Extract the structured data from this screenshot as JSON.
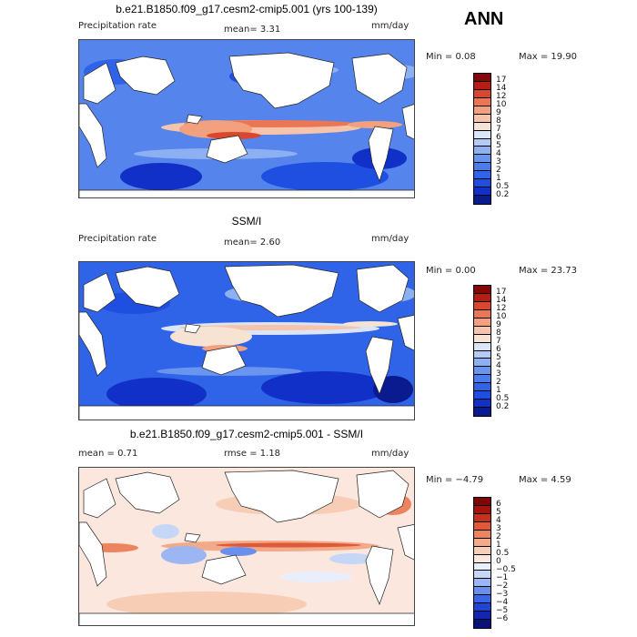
{
  "season": "ANN",
  "units": "mm/day",
  "panels": [
    {
      "title": "b.e21.B1850.f09_g17.cesm2-cmip5.001 (yrs 100-139)",
      "left_label": "Precipitation rate",
      "mid_label": "mean=   3.31",
      "units": "mm/day",
      "min_label": "Min =   0.08",
      "max_label": "Max =  19.90",
      "colorbar_ticks": [
        "17",
        "14",
        "12",
        "10",
        "9",
        "8",
        "7",
        "6",
        "5",
        "4",
        "3",
        "2",
        "1",
        "0.5",
        "0.2"
      ]
    },
    {
      "title": "SSM/I",
      "left_label": "Precipitation rate",
      "mid_label": "mean=   2.60",
      "units": "mm/day",
      "min_label": "Min =   0.00",
      "max_label": "Max =  23.73",
      "colorbar_ticks": [
        "17",
        "14",
        "12",
        "10",
        "9",
        "8",
        "7",
        "6",
        "5",
        "4",
        "3",
        "2",
        "1",
        "0.5",
        "0.2"
      ]
    },
    {
      "title": "b.e21.B1850.f09_g17.cesm2-cmip5.001 - SSM/I",
      "left_label": "mean =   0.71",
      "mid_label": "rmse =   1.18",
      "units": "mm/day",
      "min_label": "Min = −4.79",
      "max_label": "Max =   4.59",
      "colorbar_ticks": [
        "6",
        "5",
        "4",
        "3",
        "2",
        "1",
        "0.5",
        "0",
        "−0.5",
        "−1",
        "−2",
        "−3",
        "−4",
        "−5",
        "−6"
      ]
    }
  ],
  "chart_data": [
    {
      "type": "heatmap",
      "title": "b.e21.B1850.f09_g17.cesm2-cmip5.001 (yrs 100-139)",
      "variable": "Precipitation rate",
      "units": "mm/day",
      "mean": 3.31,
      "min": 0.08,
      "max": 19.9,
      "color_levels": [
        0.2,
        0.5,
        1,
        2,
        3,
        4,
        5,
        6,
        7,
        8,
        9,
        10,
        12,
        14,
        17
      ],
      "colors": [
        "#0a1a8f",
        "#1030c8",
        "#1f4fe0",
        "#2f64e8",
        "#4a7cec",
        "#6a95ef",
        "#8cb0f2",
        "#b4cbf5",
        "#dbe5f8",
        "#f6e3d4",
        "#f6c4ab",
        "#f2a07e",
        "#ea7653",
        "#d9482e",
        "#b51e13",
        "#850808"
      ]
    },
    {
      "type": "heatmap",
      "title": "SSM/I",
      "variable": "Precipitation rate",
      "units": "mm/day",
      "mean": 2.6,
      "min": 0.0,
      "max": 23.73,
      "color_levels": [
        0.2,
        0.5,
        1,
        2,
        3,
        4,
        5,
        6,
        7,
        8,
        9,
        10,
        12,
        14,
        17
      ],
      "colors": [
        "#0a1a8f",
        "#1030c8",
        "#1f4fe0",
        "#2f64e8",
        "#4a7cec",
        "#6a95ef",
        "#8cb0f2",
        "#b4cbf5",
        "#dbe5f8",
        "#f6e3d4",
        "#f6c4ab",
        "#f2a07e",
        "#ea7653",
        "#d9482e",
        "#b51e13",
        "#850808"
      ]
    },
    {
      "type": "heatmap",
      "title": "b.e21.B1850.f09_g17.cesm2-cmip5.001 - SSM/I",
      "units": "mm/day",
      "mean": 0.71,
      "rmse": 1.18,
      "min": -4.79,
      "max": 4.59,
      "color_levels": [
        -6,
        -5,
        -4,
        -3,
        -2,
        -1,
        -0.5,
        0,
        0.5,
        1,
        2,
        3,
        4,
        5,
        6
      ],
      "colors": [
        "#08127a",
        "#1226b0",
        "#1f44d6",
        "#3a66e6",
        "#6a90ee",
        "#9bb6f3",
        "#c6d6f7",
        "#e8eefb",
        "#fbe7dd",
        "#f8cdb6",
        "#f3aa8a",
        "#ec845f",
        "#de5a39",
        "#c6311d",
        "#a3150c",
        "#800606"
      ]
    }
  ]
}
